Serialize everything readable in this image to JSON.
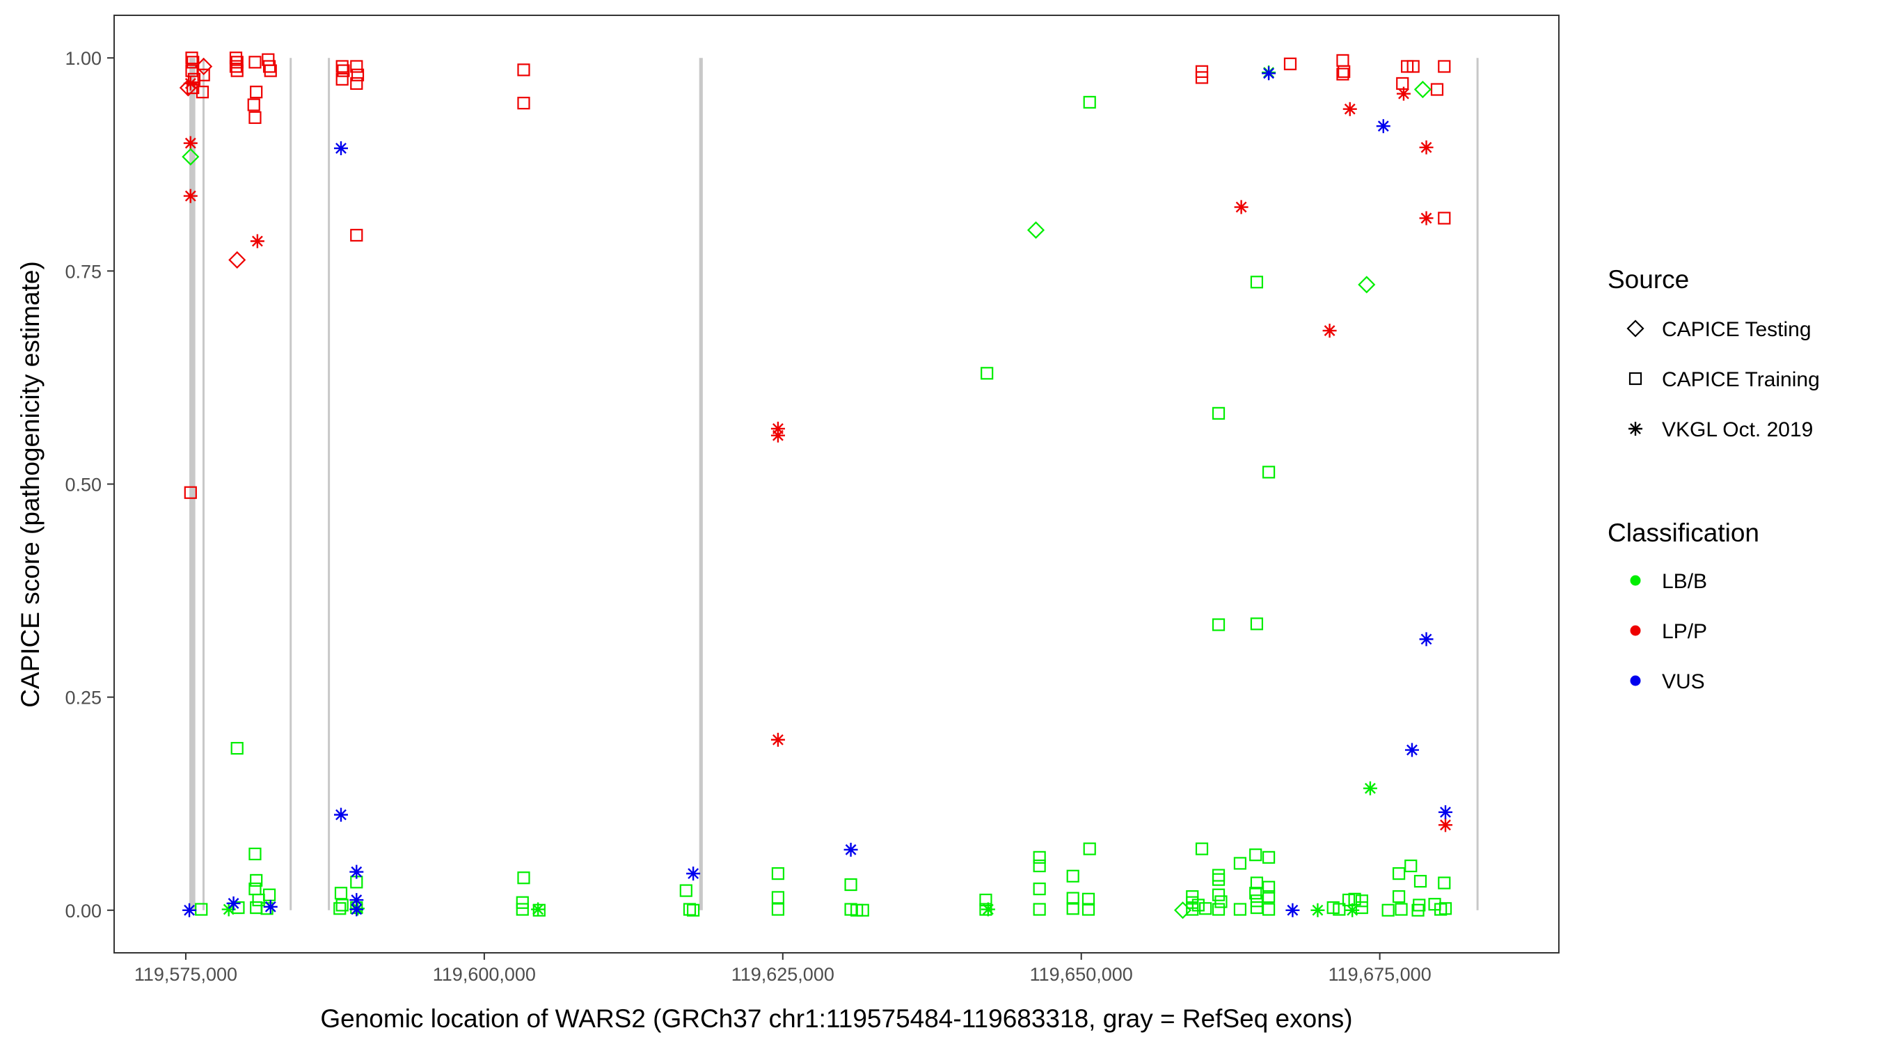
{
  "chart_data": {
    "type": "scatter",
    "xlabel": "Genomic location of WARS2 (GRCh37 chr1:119575484-119683318, gray = RefSeq exons)",
    "ylabel": "CAPICE score (pathogenicity estimate)",
    "xlim": [
      119569000,
      119690000
    ],
    "ylim": [
      -0.05,
      1.05
    ],
    "x_ticks": [
      119575000,
      119600000,
      119625000,
      119650000,
      119675000
    ],
    "x_tick_labels": [
      "119,575,000",
      "119,600,000",
      "119,625,000",
      "119,650,000",
      "119,675,000"
    ],
    "y_ticks": [
      0,
      0.25,
      0.5,
      0.75,
      1
    ],
    "y_tick_labels": [
      "0.00",
      "0.25",
      "0.50",
      "0.75",
      "1.00"
    ],
    "grid": false,
    "legend_position": "right",
    "exons": [
      {
        "start": 119575300,
        "end": 119575800
      },
      {
        "start": 119576400,
        "end": 119576500
      },
      {
        "start": 119583700,
        "end": 119583800
      },
      {
        "start": 119586900,
        "end": 119587000
      },
      {
        "start": 119618000,
        "end": 119618300
      },
      {
        "start": 119683100,
        "end": 119683200
      }
    ],
    "legends": {
      "source": {
        "title": "Source",
        "entries": [
          {
            "label": "CAPICE Testing",
            "shape": "diamond"
          },
          {
            "label": "CAPICE Training",
            "shape": "square"
          },
          {
            "label": "VKGL Oct. 2019",
            "shape": "asterisk"
          }
        ]
      },
      "classification": {
        "title": "Classification",
        "entries": [
          {
            "label": "LB/B",
            "color": "#00ee00"
          },
          {
            "label": "LP/P",
            "color": "#ee0000"
          },
          {
            "label": "VUS",
            "color": "#0000ee"
          }
        ]
      }
    },
    "series": [
      {
        "source": "CAPICE Training",
        "classification": "LP/P",
        "points": [
          [
            119575500,
            1.0
          ],
          [
            119575600,
            0.995
          ],
          [
            119575500,
            0.985
          ],
          [
            119575700,
            0.975
          ],
          [
            119575600,
            0.965
          ],
          [
            119576400,
            0.96
          ],
          [
            119576500,
            0.98
          ],
          [
            119575400,
            0.49
          ],
          [
            119579200,
            1.0
          ],
          [
            119579300,
            0.995
          ],
          [
            119579200,
            0.99
          ],
          [
            119579300,
            0.985
          ],
          [
            119580800,
            0.995
          ],
          [
            119580900,
            0.96
          ],
          [
            119580700,
            0.945
          ],
          [
            119580800,
            0.93
          ],
          [
            119581900,
            0.998
          ],
          [
            119582000,
            0.99
          ],
          [
            119582100,
            0.985
          ],
          [
            119588100,
            0.99
          ],
          [
            119588200,
            0.985
          ],
          [
            119588100,
            0.975
          ],
          [
            119589300,
            0.99
          ],
          [
            119589400,
            0.98
          ],
          [
            119589300,
            0.97
          ],
          [
            119589300,
            0.792
          ],
          [
            119603300,
            0.986
          ],
          [
            119603300,
            0.947
          ],
          [
            119660100,
            0.984
          ],
          [
            119660100,
            0.977
          ],
          [
            119667500,
            0.993
          ],
          [
            119671900,
            0.997
          ],
          [
            119672000,
            0.984
          ],
          [
            119671900,
            0.981
          ],
          [
            119676900,
            0.97
          ],
          [
            119677300,
            0.99
          ],
          [
            119677800,
            0.99
          ],
          [
            119679800,
            0.963
          ],
          [
            119680400,
            0.99
          ],
          [
            119680400,
            0.812
          ]
        ]
      },
      {
        "source": "CAPICE Testing",
        "classification": "LP/P",
        "points": [
          [
            119575200,
            0.965
          ],
          [
            119576500,
            0.99
          ],
          [
            119579300,
            0.763
          ]
        ]
      },
      {
        "source": "VKGL Oct. 2019",
        "classification": "LP/P",
        "points": [
          [
            119575400,
            0.97
          ],
          [
            119575400,
            0.9
          ],
          [
            119575400,
            0.838
          ],
          [
            119581000,
            0.785
          ],
          [
            119624600,
            0.565
          ],
          [
            119624600,
            0.557
          ],
          [
            119624600,
            0.2
          ],
          [
            119663400,
            0.825
          ],
          [
            119670800,
            0.68
          ],
          [
            119672500,
            0.94
          ],
          [
            119677000,
            0.958
          ],
          [
            119678900,
            0.895
          ],
          [
            119678900,
            0.812
          ],
          [
            119680500,
            0.1
          ]
        ]
      },
      {
        "source": "CAPICE Training",
        "classification": "LB/B",
        "points": [
          [
            119579300,
            0.19
          ],
          [
            119580800,
            0.066
          ],
          [
            119580900,
            0.035
          ],
          [
            119580800,
            0.025
          ],
          [
            119581100,
            0.012
          ],
          [
            119582000,
            0.018
          ],
          [
            119580900,
            0.003
          ],
          [
            119581800,
            0.002
          ],
          [
            119579400,
            0.003
          ],
          [
            119576300,
            0.001
          ],
          [
            119588000,
            0.02
          ],
          [
            119588100,
            0.006
          ],
          [
            119589300,
            0.033
          ],
          [
            119589300,
            0.003
          ],
          [
            119587900,
            0.002
          ],
          [
            119603300,
            0.038
          ],
          [
            119603200,
            0.009
          ],
          [
            119604600,
            0.0
          ],
          [
            119603200,
            0.001
          ],
          [
            119616900,
            0.023
          ],
          [
            119617200,
            0.001
          ],
          [
            119617500,
            0.0
          ],
          [
            119624600,
            0.043
          ],
          [
            119624600,
            0.015
          ],
          [
            119624600,
            0.001
          ],
          [
            119630700,
            0.03
          ],
          [
            119630700,
            0.001
          ],
          [
            119631200,
            0.0
          ],
          [
            119631700,
            0.0
          ],
          [
            119642100,
            0.63
          ],
          [
            119642000,
            0.012
          ],
          [
            119642000,
            0.001
          ],
          [
            119646500,
            0.062
          ],
          [
            119646500,
            0.052
          ],
          [
            119646500,
            0.025
          ],
          [
            119646500,
            0.001
          ],
          [
            119650700,
            0.948
          ],
          [
            119650700,
            0.072
          ],
          [
            119649300,
            0.04
          ],
          [
            119649300,
            0.014
          ],
          [
            119649300,
            0.002
          ],
          [
            119650600,
            0.013
          ],
          [
            119650600,
            0.001
          ],
          [
            119660100,
            0.072
          ],
          [
            119659300,
            0.016
          ],
          [
            119659300,
            0.009
          ],
          [
            119659300,
            0.001
          ],
          [
            119659800,
            0.006
          ],
          [
            119660400,
            0.002
          ],
          [
            119661500,
            0.583
          ],
          [
            119661500,
            0.335
          ],
          [
            119661500,
            0.041
          ],
          [
            119661500,
            0.036
          ],
          [
            119661500,
            0.018
          ],
          [
            119661700,
            0.01
          ],
          [
            119661500,
            0.001
          ],
          [
            119663300,
            0.055
          ],
          [
            119663300,
            0.001
          ],
          [
            119664700,
            0.737
          ],
          [
            119664700,
            0.336
          ],
          [
            119664600,
            0.065
          ],
          [
            119664700,
            0.032
          ],
          [
            119664600,
            0.02
          ],
          [
            119664700,
            0.011
          ],
          [
            119664700,
            0.003
          ],
          [
            119665700,
            0.514
          ],
          [
            119665700,
            0.062
          ],
          [
            119665700,
            0.027
          ],
          [
            119665700,
            0.016
          ],
          [
            119665700,
            0.001
          ],
          [
            119671100,
            0.003
          ],
          [
            119671600,
            0.001
          ],
          [
            119672400,
            0.012
          ],
          [
            119672900,
            0.013
          ],
          [
            119673500,
            0.011
          ],
          [
            119673500,
            0.003
          ],
          [
            119675700,
            0.0
          ],
          [
            119676600,
            0.043
          ],
          [
            119676600,
            0.016
          ],
          [
            119676800,
            0.001
          ],
          [
            119677600,
            0.052
          ],
          [
            119678400,
            0.034
          ],
          [
            119678300,
            0.006
          ],
          [
            119678200,
            0.0
          ],
          [
            119679600,
            0.007
          ],
          [
            119680400,
            0.032
          ],
          [
            119680100,
            0.001
          ],
          [
            119680500,
            0.002
          ]
        ]
      },
      {
        "source": "CAPICE Testing",
        "classification": "LB/B",
        "points": [
          [
            119575400,
            0.884
          ],
          [
            119646200,
            0.798
          ],
          [
            119673900,
            0.734
          ],
          [
            119678600,
            0.963
          ],
          [
            119658500,
            0.0
          ]
        ]
      },
      {
        "source": "VKGL Oct. 2019",
        "classification": "LB/B",
        "points": [
          [
            119665700,
            0.983
          ],
          [
            119674200,
            0.143
          ],
          [
            119578600,
            0.001
          ],
          [
            119604500,
            0.001
          ],
          [
            119642200,
            0.001
          ],
          [
            119669800,
            0.0
          ],
          [
            119672700,
            0.0
          ],
          [
            119589400,
            0.002
          ]
        ]
      },
      {
        "source": "VKGL Oct. 2019",
        "classification": "VUS",
        "points": [
          [
            119575300,
            0.0
          ],
          [
            119579000,
            0.008
          ],
          [
            119582100,
            0.004
          ],
          [
            119588000,
            0.894
          ],
          [
            119588000,
            0.112
          ],
          [
            119589300,
            0.045
          ],
          [
            119589300,
            0.012
          ],
          [
            119589300,
            0.001
          ],
          [
            119617500,
            0.043
          ],
          [
            119630700,
            0.071
          ],
          [
            119665700,
            0.982
          ],
          [
            119667700,
            0.0
          ],
          [
            119675300,
            0.92
          ],
          [
            119677700,
            0.188
          ],
          [
            119678900,
            0.318
          ],
          [
            119680500,
            0.115
          ]
        ]
      }
    ]
  }
}
